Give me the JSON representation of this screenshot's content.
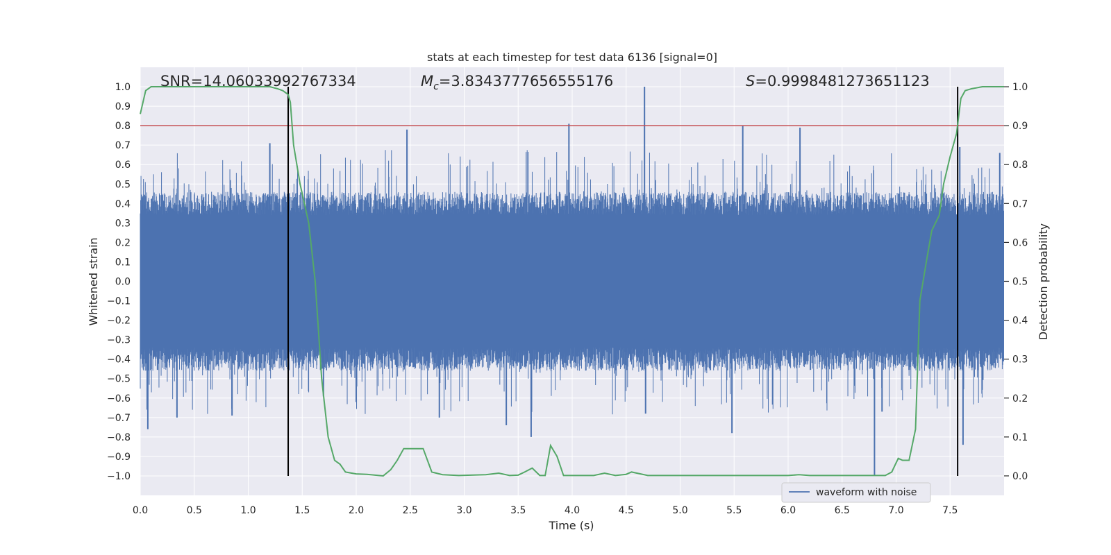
{
  "chart_data": {
    "type": "line",
    "title": "stats at each timestep for test data 6136 [signal=0]",
    "xlabel": "Time (s)",
    "ylabel_left": "Whitened strain",
    "ylabel_right": "Detection probability",
    "xlim": [
      0.0,
      8.0
    ],
    "ylim_left": [
      -1.1,
      1.1
    ],
    "ylim_right": [
      -0.05,
      1.05
    ],
    "x_ticks": [
      0.0,
      0.5,
      1.0,
      1.5,
      2.0,
      2.5,
      3.0,
      3.5,
      4.0,
      4.5,
      5.0,
      5.5,
      6.0,
      6.5,
      7.0,
      7.5
    ],
    "x_tick_labels": [
      "0.0",
      "0.5",
      "1.0",
      "1.5",
      "2.0",
      "2.5",
      "3.0",
      "3.5",
      "4.0",
      "4.5",
      "5.0",
      "5.5",
      "6.0",
      "6.5",
      "7.0",
      "7.5"
    ],
    "y_left_ticks": [
      1.0,
      0.9,
      0.8,
      0.7,
      0.6,
      0.5,
      0.4,
      0.3,
      0.2,
      0.1,
      0.0,
      -0.1,
      -0.2,
      -0.3,
      -0.4,
      -0.5,
      -0.6,
      -0.7,
      -0.8,
      -0.9,
      -1.0
    ],
    "y_left_tick_labels": [
      "1.0",
      "0.9",
      "0.8",
      "0.7",
      "0.6",
      "0.5",
      "0.4",
      "0.3",
      "0.2",
      "0.1",
      "0.0",
      "−0.1",
      "−0.2",
      "−0.3",
      "−0.4",
      "−0.5",
      "−0.6",
      "−0.7",
      "−0.8",
      "−0.9",
      "−1.0"
    ],
    "y_right_ticks": [
      1.0,
      0.9,
      0.8,
      0.7,
      0.6,
      0.5,
      0.4,
      0.3,
      0.2,
      0.1,
      0.0
    ],
    "y_right_tick_labels": [
      "1.0",
      "0.9",
      "0.8",
      "0.7",
      "0.6",
      "0.5",
      "0.4",
      "0.3",
      "0.2",
      "0.1",
      "0.0"
    ],
    "grid": true,
    "legend_position": "bottom-right",
    "annotations": {
      "snr": "SNR=14.06033992767334",
      "mc_prefix": "M",
      "mc_sub": "c",
      "mc_value": "=3.8343777656555176",
      "s_prefix": "S",
      "s_value": "=0.9998481273651123"
    },
    "series": [
      {
        "name": "waveform with noise",
        "axis": "left",
        "color": "#4c72b0",
        "noise": {
          "envelope_typical": 0.4,
          "peaks": [
            {
              "x": 0.07,
              "y": -0.76
            },
            {
              "x": 0.34,
              "y": -0.7
            },
            {
              "x": 0.85,
              "y": -0.69
            },
            {
              "x": 1.2,
              "y": 0.71
            },
            {
              "x": 2.47,
              "y": 0.78
            },
            {
              "x": 2.77,
              "y": -0.7
            },
            {
              "x": 3.39,
              "y": -0.74
            },
            {
              "x": 3.62,
              "y": -0.8
            },
            {
              "x": 3.97,
              "y": 0.81
            },
            {
              "x": 4.67,
              "y": 1.0
            },
            {
              "x": 4.68,
              "y": -0.68
            },
            {
              "x": 5.48,
              "y": -0.78
            },
            {
              "x": 5.58,
              "y": 0.8
            },
            {
              "x": 6.11,
              "y": 0.79
            },
            {
              "x": 6.8,
              "y": -1.0
            },
            {
              "x": 6.87,
              "y": -0.67
            },
            {
              "x": 7.59,
              "y": 0.69
            },
            {
              "x": 7.62,
              "y": -0.84
            },
            {
              "x": 7.96,
              "y": 0.66
            }
          ]
        }
      },
      {
        "name": "detection probability",
        "axis": "right",
        "color": "#55a868",
        "x": [
          0.0,
          0.05,
          0.1,
          0.2,
          0.4,
          0.6,
          0.8,
          1.0,
          1.1,
          1.2,
          1.27,
          1.32,
          1.37,
          1.39,
          1.42,
          1.48,
          1.56,
          1.62,
          1.68,
          1.74,
          1.8,
          1.85,
          1.9,
          2.0,
          2.1,
          2.25,
          2.32,
          2.38,
          2.44,
          2.5,
          2.56,
          2.62,
          2.7,
          2.8,
          2.95,
          3.2,
          3.32,
          3.42,
          3.5,
          3.56,
          3.63,
          3.7,
          3.75,
          3.8,
          3.86,
          3.92,
          4.0,
          4.1,
          4.2,
          4.3,
          4.4,
          4.5,
          4.55,
          4.7,
          5.0,
          5.5,
          6.0,
          6.1,
          6.2,
          6.4,
          6.6,
          6.8,
          6.9,
          6.96,
          7.02,
          7.06,
          7.12,
          7.18,
          7.22,
          7.28,
          7.33,
          7.4,
          7.44,
          7.5,
          7.56,
          7.6,
          7.64,
          7.7,
          7.8,
          8.0
        ],
        "values": [
          0.93,
          0.99,
          1.0,
          1.0,
          1.0,
          1.0,
          1.0,
          1.0,
          1.0,
          1.0,
          0.995,
          0.99,
          0.98,
          0.96,
          0.85,
          0.75,
          0.65,
          0.5,
          0.25,
          0.1,
          0.04,
          0.03,
          0.01,
          0.005,
          0.004,
          0.0,
          0.016,
          0.04,
          0.07,
          0.07,
          0.07,
          0.07,
          0.01,
          0.003,
          0.001,
          0.003,
          0.007,
          0.001,
          0.002,
          0.01,
          0.02,
          0.001,
          0.001,
          0.078,
          0.05,
          0.001,
          0.001,
          0.001,
          0.001,
          0.007,
          0.001,
          0.004,
          0.01,
          0.001,
          0.001,
          0.001,
          0.001,
          0.003,
          0.001,
          0.001,
          0.001,
          0.001,
          0.001,
          0.01,
          0.045,
          0.04,
          0.04,
          0.12,
          0.45,
          0.55,
          0.63,
          0.67,
          0.75,
          0.82,
          0.88,
          0.97,
          0.99,
          0.995,
          1.0,
          1.0
        ]
      }
    ],
    "threshold_line": {
      "axis": "left",
      "y": 0.8,
      "color": "#c44e52"
    },
    "vertical_lines": [
      {
        "x": 1.37,
        "color": "#000000"
      },
      {
        "x": 7.57,
        "color": "#000000"
      }
    ],
    "colors": {
      "plot_background": "#eaeaf2",
      "grid": "#ffffff"
    }
  }
}
